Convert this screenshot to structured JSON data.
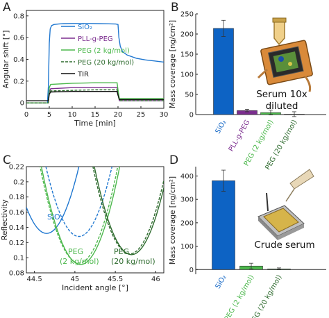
{
  "colors": {
    "sio2": "#1f77d0",
    "pll": "#7b2d8e",
    "peg2": "#4cb84c",
    "peg20": "#2e6b2e",
    "tir": "#111111",
    "bar_sio2": "#0d63c4",
    "bar_pll": "#7b2d8e",
    "bar_peg2": "#4cb84c",
    "bar_peg20": "#2e6b2e",
    "axis": "#222222"
  },
  "panels": {
    "A": {
      "letter": "A"
    },
    "B": {
      "letter": "B",
      "annotation_line1": "Serum 10x",
      "annotation_line2": "diluted"
    },
    "C": {
      "letter": "C",
      "label_sio2": "SiO₂",
      "label_peg2_l1": "PEG",
      "label_peg2_l2": "(2 kg/mol)",
      "label_peg20_l1": "PEG",
      "label_peg20_l2": "(20 kg/mol)"
    },
    "D": {
      "letter": "D",
      "annotation": "Crude serum"
    }
  },
  "chart_data": [
    {
      "id": "A",
      "type": "line",
      "xlabel": "Time [min]",
      "ylabel": "Angular shift [°]",
      "xlim": [
        0,
        30
      ],
      "ylim": [
        -0.05,
        0.85
      ],
      "xticks": [
        0,
        5,
        10,
        15,
        20,
        25,
        30
      ],
      "yticks": [
        0,
        0.2,
        0.4,
        0.6,
        0.8
      ],
      "legend": "top-right",
      "series": [
        {
          "name": "SiO₂",
          "style": "solid",
          "x": [
            0,
            4.6,
            4.8,
            5.0,
            5.2,
            5.5,
            6,
            7,
            8,
            10,
            12,
            14,
            16,
            18,
            19.5,
            20.0,
            20.2,
            20.5,
            21,
            22,
            24,
            26,
            28,
            30
          ],
          "y": [
            0,
            0,
            0.15,
            0.55,
            0.68,
            0.71,
            0.72,
            0.725,
            0.728,
            0.73,
            0.73,
            0.73,
            0.728,
            0.727,
            0.725,
            0.72,
            0.6,
            0.52,
            0.47,
            0.44,
            0.41,
            0.395,
            0.385,
            0.375
          ]
        },
        {
          "name": "PLL-g-PEG",
          "style": "solid",
          "x": [
            0,
            4.8,
            5.0,
            5.3,
            10,
            15,
            19.8,
            20.0,
            20.3,
            25,
            30
          ],
          "y": [
            0,
            0,
            0.1,
            0.13,
            0.14,
            0.14,
            0.14,
            0.1,
            0.02,
            0.02,
            0.02
          ]
        },
        {
          "name": "PEG (2 kg/mol)",
          "style": "solid",
          "x": [
            0,
            4.8,
            5.0,
            5.3,
            10,
            15,
            19.8,
            20.0,
            20.3,
            25,
            30
          ],
          "y": [
            0,
            0,
            0.14,
            0.17,
            0.18,
            0.185,
            0.185,
            0.12,
            0.04,
            0.04,
            0.04
          ]
        },
        {
          "name": "PEG (20 kg/mol)",
          "style": "dashed",
          "x": [
            0,
            4.8,
            5.0,
            5.3,
            10,
            15,
            19.8,
            20.0,
            20.3,
            25,
            30
          ],
          "y": [
            0,
            0,
            0.09,
            0.11,
            0.115,
            0.12,
            0.12,
            0.08,
            0.02,
            0.02,
            0.02
          ]
        },
        {
          "name": "TIR",
          "style": "solid",
          "x": [
            0,
            4.8,
            5.0,
            5.3,
            10,
            15,
            19.8,
            20.0,
            20.3,
            25,
            30
          ],
          "y": [
            0.02,
            0.02,
            0.08,
            0.1,
            0.105,
            0.105,
            0.105,
            0.07,
            0.03,
            0.03,
            0.03
          ]
        }
      ]
    },
    {
      "id": "B",
      "type": "bar",
      "xlabel": "",
      "ylabel": "Mass coverage [ng/cm²]",
      "ylim": [
        0,
        250
      ],
      "yticks": [
        0,
        50,
        100,
        150,
        200,
        250
      ],
      "categories": [
        "SiO₂",
        "PLL-g-PEG",
        "PEG (2 kg/mol)",
        "PEG (20 kg/mol)"
      ],
      "values": [
        214,
        10,
        5,
        1
      ],
      "errors": [
        20,
        3,
        6,
        6
      ]
    },
    {
      "id": "C",
      "type": "line",
      "xlabel": "Incident angle [°]",
      "ylabel": "Reflectivity",
      "xlim": [
        44.4,
        46.1
      ],
      "ylim": [
        0.08,
        0.22
      ],
      "xticks": [
        44.5,
        45,
        45.5,
        46
      ],
      "yticks": [
        0.08,
        0.1,
        0.12,
        0.14,
        0.16,
        0.18,
        0.2,
        0.22
      ],
      "series": [
        {
          "name": "SiO₂",
          "style": "solid",
          "min_x": 44.65,
          "min_y": 0.132
        },
        {
          "name": "SiO₂",
          "style": "dashed",
          "min_x": 45.05,
          "min_y": 0.128
        },
        {
          "name": "PEG (2 kg/mol)",
          "style": "solid",
          "min_x": 45.07,
          "min_y": 0.091
        },
        {
          "name": "PEG (2 kg/mol)",
          "style": "dashed",
          "min_x": 45.05,
          "min_y": 0.093
        },
        {
          "name": "PEG (20 kg/mol)",
          "style": "solid",
          "min_x": 45.7,
          "min_y": 0.104
        },
        {
          "name": "PEG (20 kg/mol)",
          "style": "dashed",
          "min_x": 45.68,
          "min_y": 0.105
        }
      ]
    },
    {
      "id": "D",
      "type": "bar",
      "xlabel": "",
      "ylabel": "Mass coverage [ng/cm²]",
      "ylim": [
        -20,
        440
      ],
      "yticks": [
        0,
        100,
        200,
        300,
        400
      ],
      "categories": [
        "SiO₂",
        "PEG (2 kg/mol)",
        "PEG (20 kg/mol)"
      ],
      "values": [
        380,
        15,
        3
      ],
      "errors": [
        45,
        12,
        4
      ]
    }
  ]
}
